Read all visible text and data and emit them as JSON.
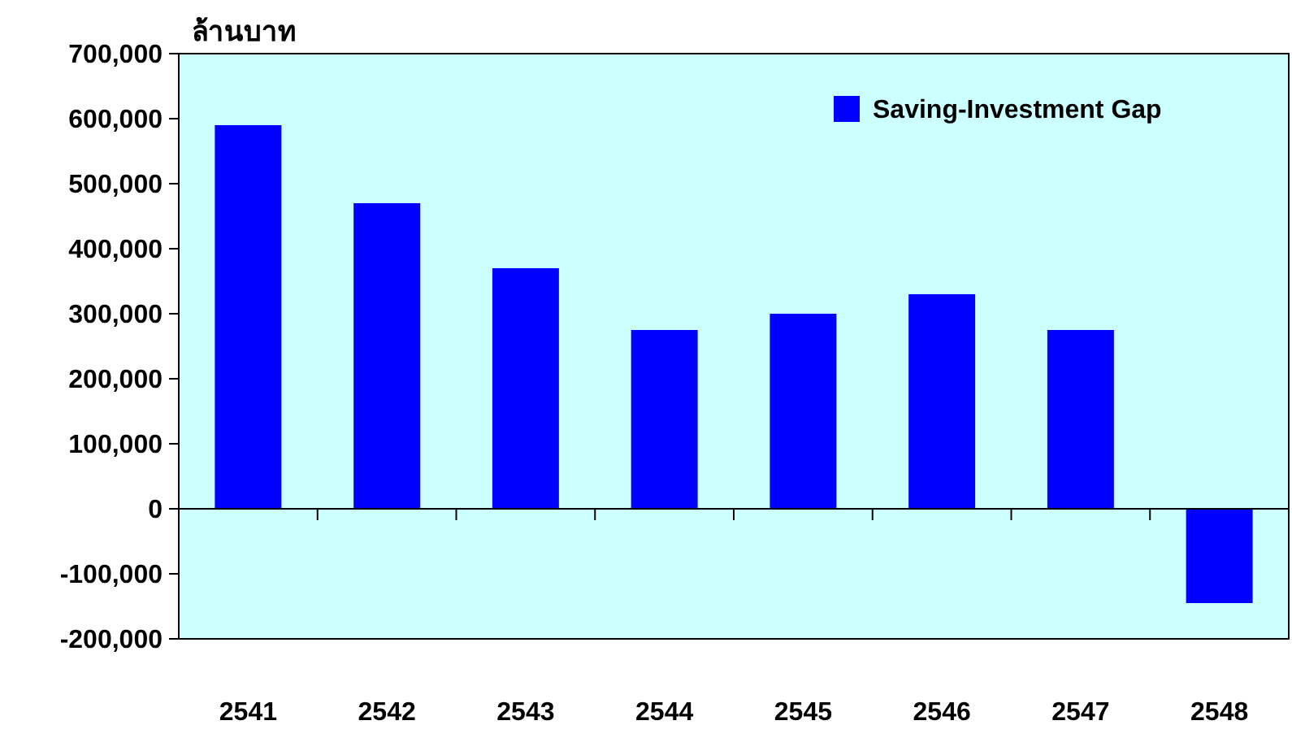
{
  "chart_data": {
    "type": "bar",
    "ylabel": "ล้านบาท",
    "categories": [
      "2541",
      "2542",
      "2543",
      "2544",
      "2545",
      "2546",
      "2547",
      "2548"
    ],
    "series": [
      {
        "name": "Saving-Investment Gap",
        "color": "#0000ff",
        "values": [
          590000,
          470000,
          370000,
          275000,
          300000,
          330000,
          275000,
          -145000
        ]
      }
    ],
    "ylim": [
      -200000,
      700000
    ],
    "yticks": [
      {
        "value": -200000,
        "label": "-200,000"
      },
      {
        "value": -100000,
        "label": "-100,000"
      },
      {
        "value": 0,
        "label": "0"
      },
      {
        "value": 100000,
        "label": "100,000"
      },
      {
        "value": 200000,
        "label": "200,000"
      },
      {
        "value": 300000,
        "label": "300,000"
      },
      {
        "value": 400000,
        "label": "400,000"
      },
      {
        "value": 500000,
        "label": "500,000"
      },
      {
        "value": 600000,
        "label": "600,000"
      },
      {
        "value": 700000,
        "label": "700,000"
      }
    ],
    "legend": "top right"
  }
}
